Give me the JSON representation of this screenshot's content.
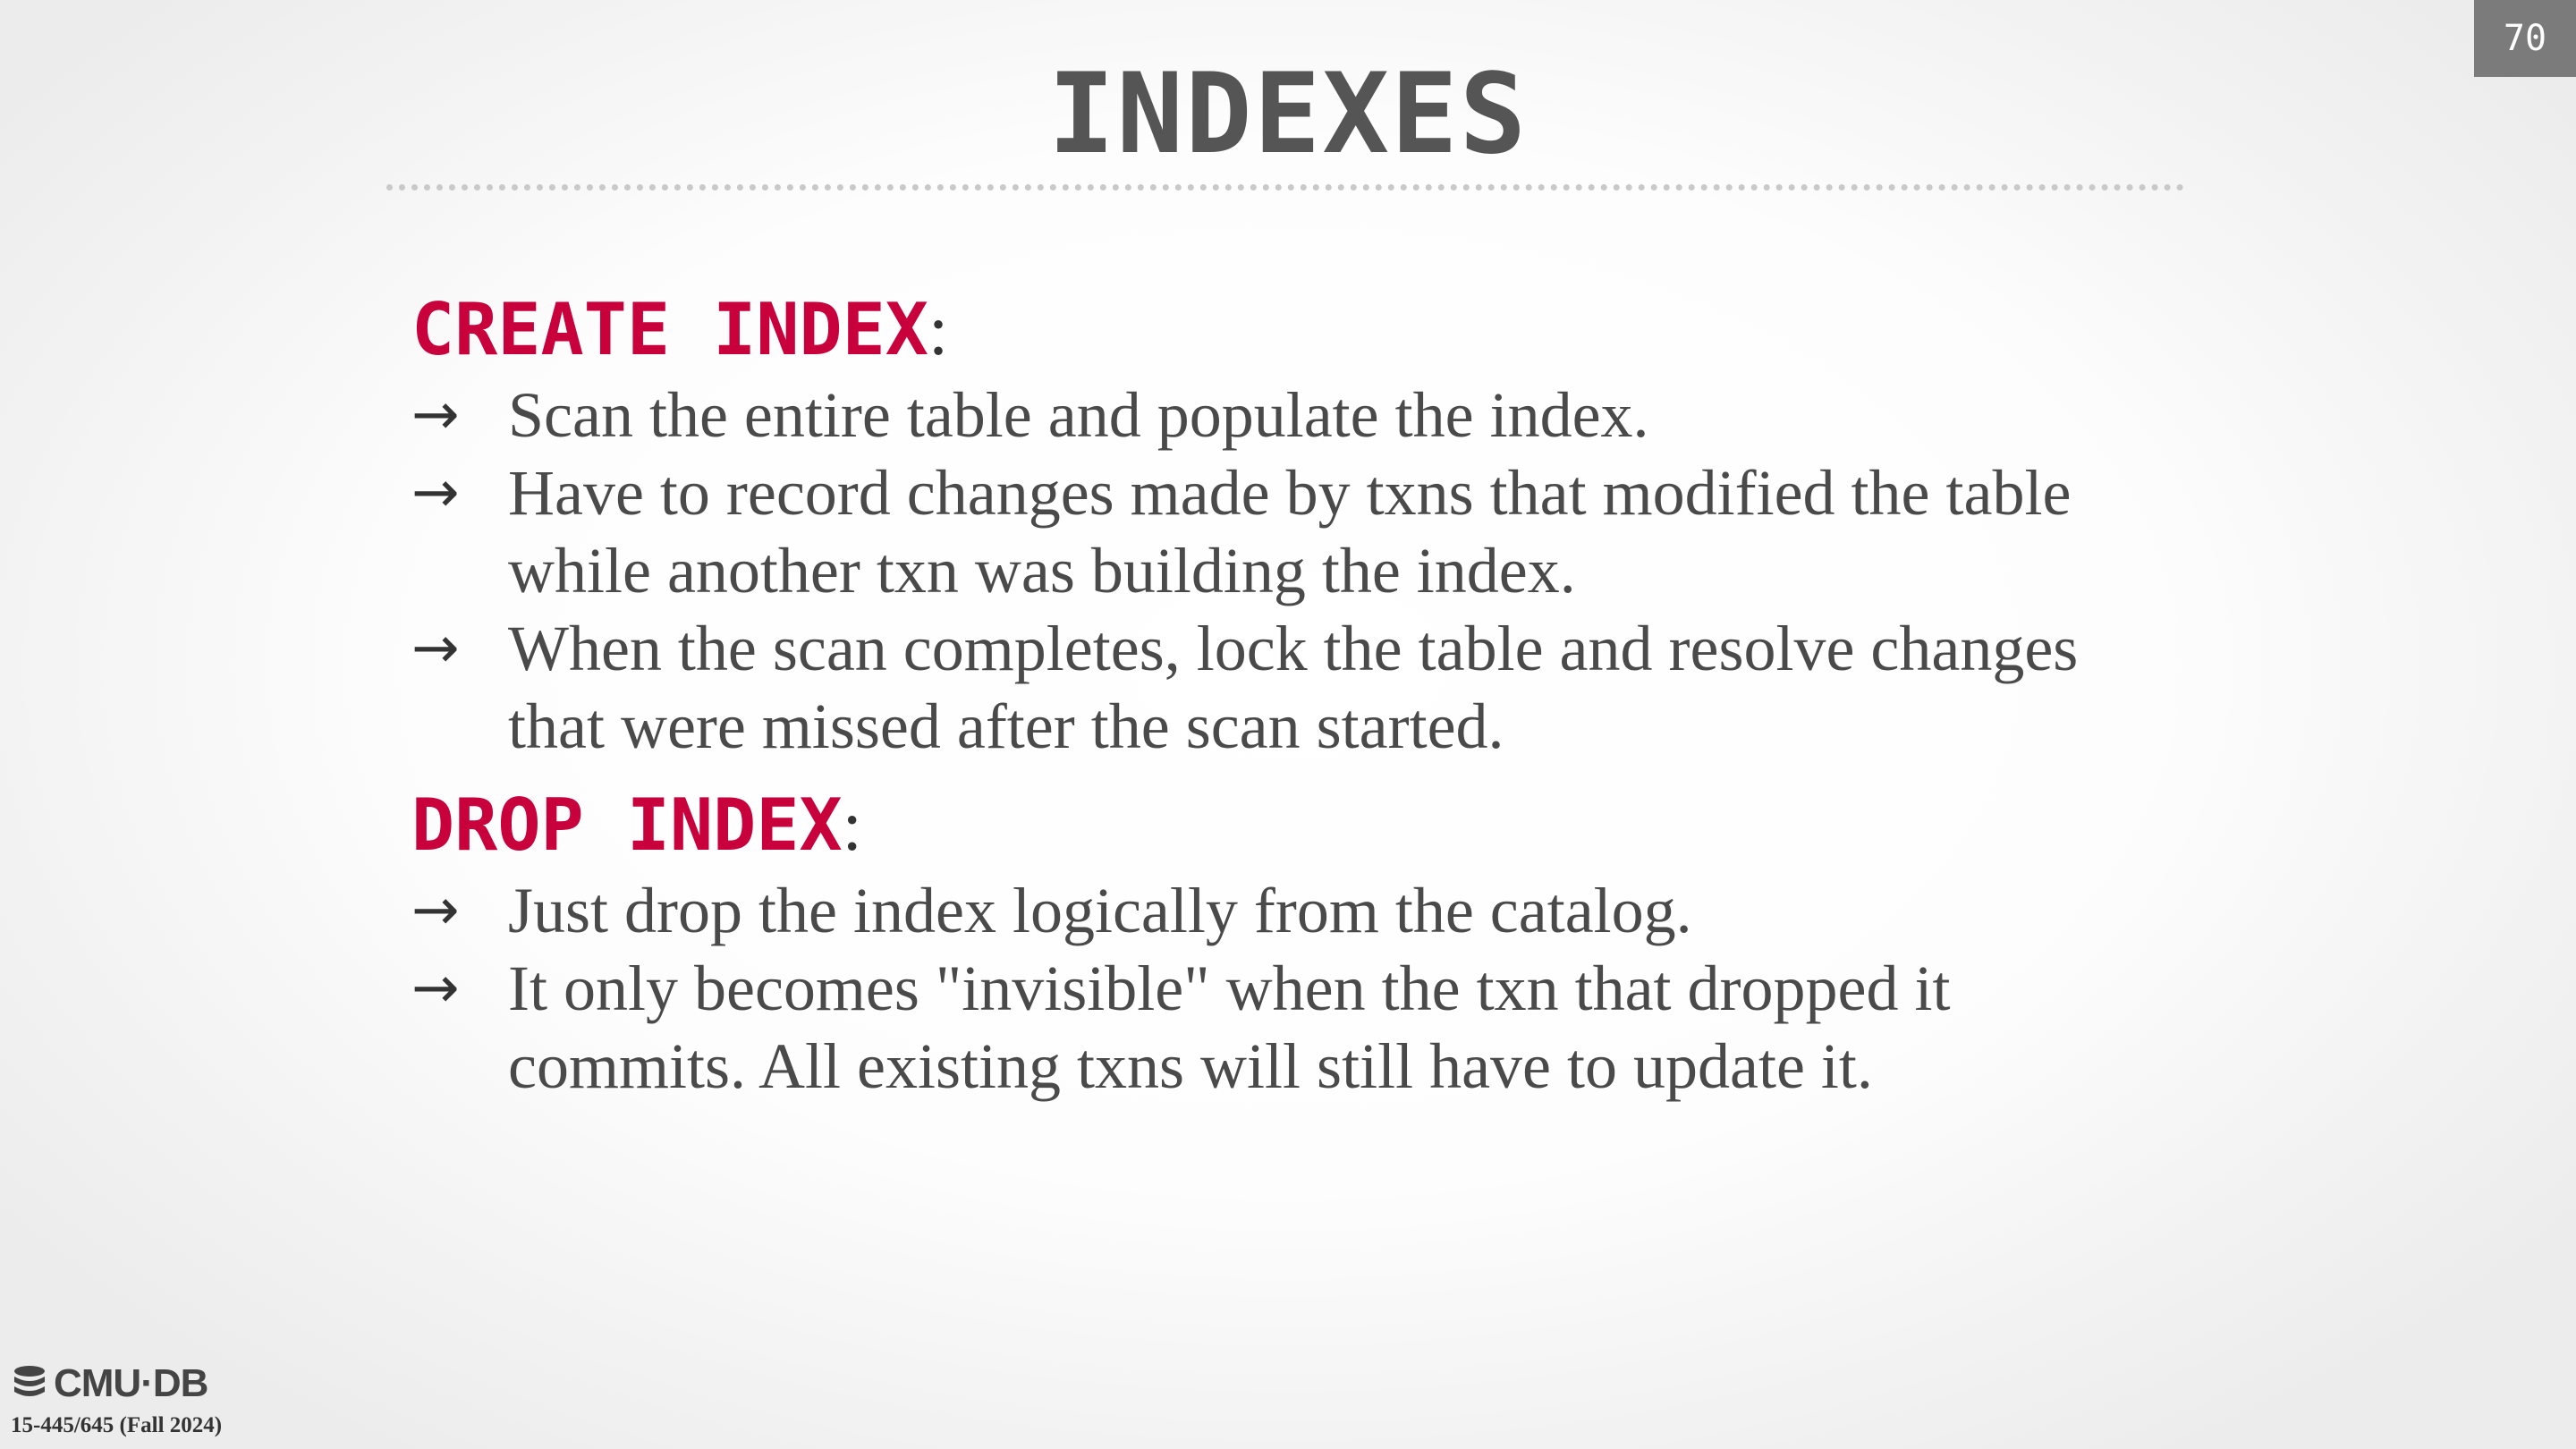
{
  "slide": {
    "number": "70",
    "title": "INDEXES"
  },
  "sections": [
    {
      "heading": "CREATE INDEX",
      "colon": ":",
      "bullets": [
        "Scan the entire table and populate the index.",
        "Have to record changes made by txns that modified the table while another txn was building the index.",
        "When the scan completes, lock the table and resolve changes that were missed after the scan started."
      ]
    },
    {
      "heading": "DROP INDEX",
      "colon": ":",
      "bullets": [
        "Just drop the index logically from the catalog.",
        "It only becomes \"invisible\" when the txn that dropped it commits. All existing txns will still have to update it."
      ]
    }
  ],
  "bullet_symbol": "→",
  "footer": {
    "logo_text": "CMU·DB",
    "logo_icon": "database-stack-icon",
    "course": "15-445/645 (Fall 2024)"
  },
  "colors": {
    "keyword": "#c8003c",
    "title": "#555555",
    "body_text": "#4a4a4a",
    "slide_number_bg": "#7b7b7b"
  }
}
